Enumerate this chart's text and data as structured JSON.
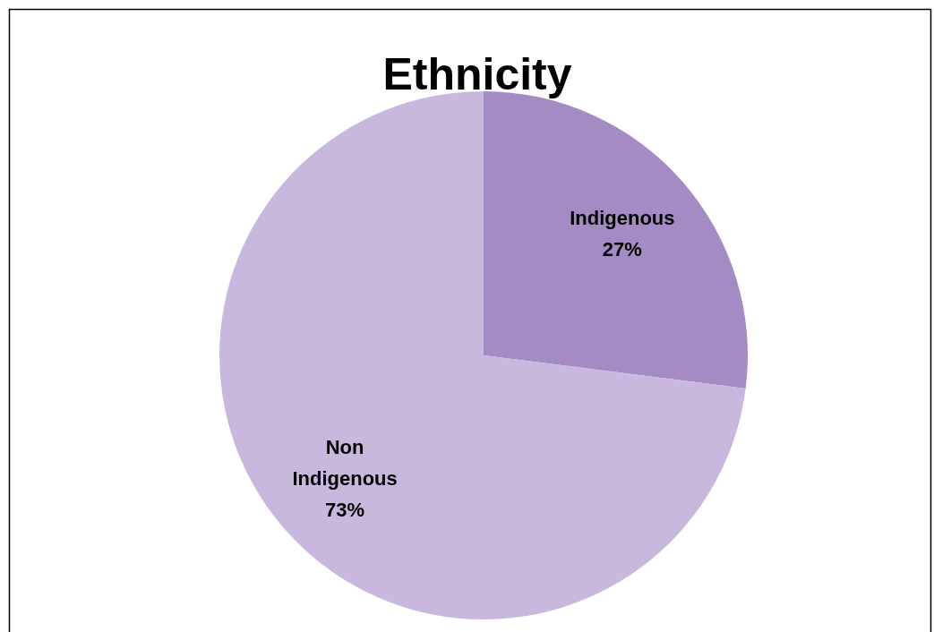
{
  "chart_data": {
    "type": "pie",
    "title": "Ethnicity",
    "categories": [
      "Indigenous",
      "Non Indigenous"
    ],
    "values": [
      27,
      73
    ],
    "colors": [
      "#a48bc3",
      "#c8b8de"
    ],
    "value_labels": [
      "27%",
      "73%"
    ],
    "legend": false
  }
}
